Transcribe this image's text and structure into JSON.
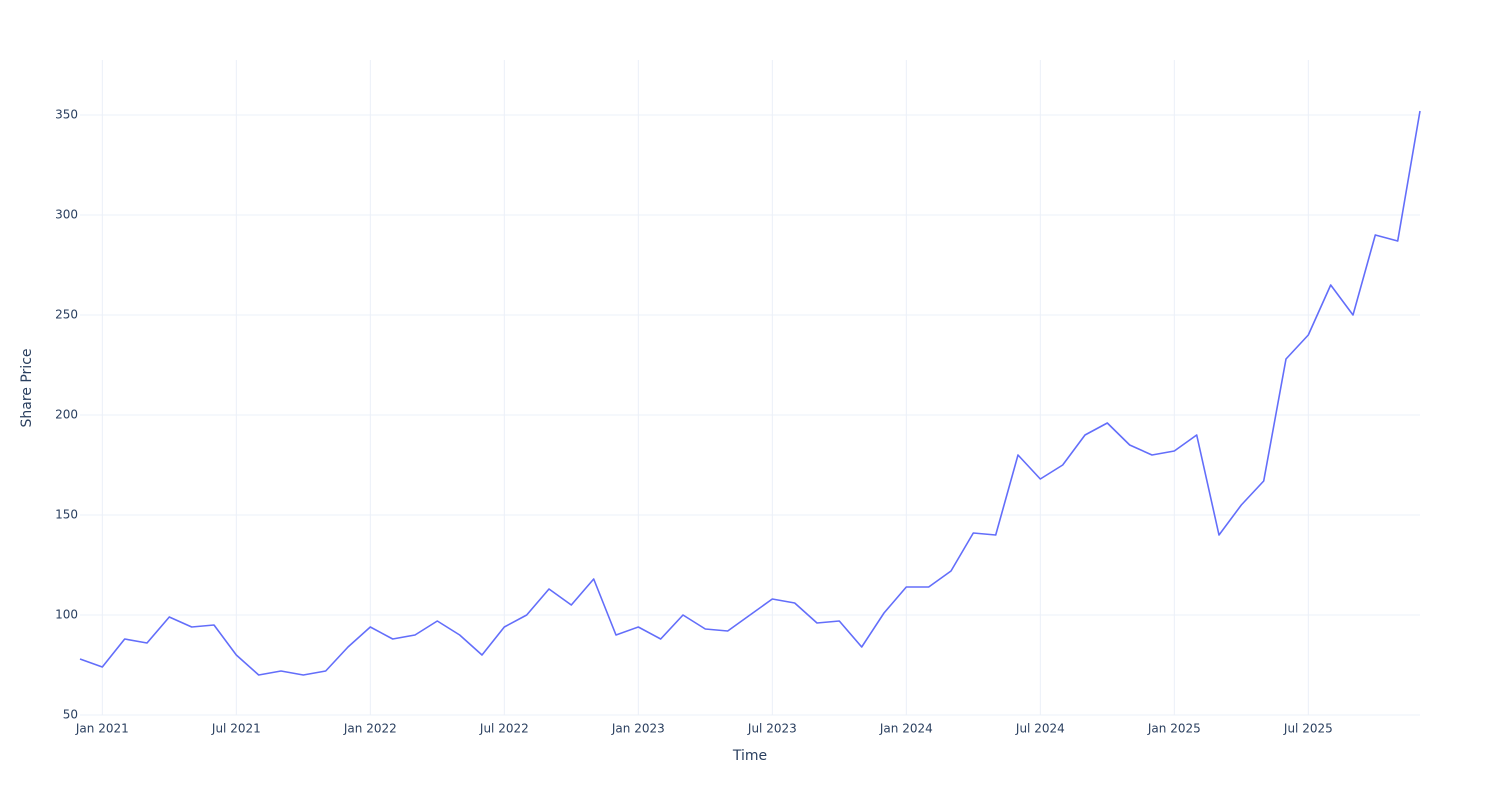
{
  "chart_data": {
    "type": "line",
    "x_label": "Time",
    "y_label": "Share Price",
    "x": [
      "2020-12",
      "2021-01",
      "2021-02",
      "2021-03",
      "2021-04",
      "2021-05",
      "2021-06",
      "2021-07",
      "2021-08",
      "2021-09",
      "2021-10",
      "2021-11",
      "2021-12",
      "2022-01",
      "2022-02",
      "2022-03",
      "2022-04",
      "2022-05",
      "2022-06",
      "2022-07",
      "2022-08",
      "2022-09",
      "2022-10",
      "2022-11",
      "2022-12",
      "2023-01",
      "2023-02",
      "2023-03",
      "2023-04",
      "2023-05",
      "2023-06",
      "2023-07",
      "2023-08",
      "2023-09",
      "2023-10",
      "2023-11",
      "2023-12",
      "2024-01",
      "2024-02",
      "2024-03",
      "2024-04",
      "2024-05",
      "2024-06",
      "2024-07",
      "2024-08",
      "2024-09",
      "2024-10",
      "2024-11",
      "2024-12",
      "2025-01",
      "2025-02",
      "2025-03",
      "2025-04",
      "2025-05",
      "2025-06",
      "2025-07",
      "2025-08",
      "2025-09",
      "2025-10",
      "2025-11",
      "2025-12"
    ],
    "series": [
      {
        "color": "#636efa",
        "values": [
          78,
          74,
          88,
          86,
          99,
          94,
          95,
          80,
          70,
          72,
          70,
          72,
          84,
          94,
          88,
          90,
          97,
          90,
          80,
          94,
          100,
          113,
          105,
          118,
          90,
          94,
          88,
          100,
          93,
          92,
          100,
          108,
          106,
          96,
          97,
          84,
          101,
          114,
          114,
          122,
          141,
          140,
          180,
          168,
          175,
          190,
          196,
          185,
          180,
          182,
          190,
          140,
          155,
          167,
          228,
          240,
          265,
          250,
          290,
          287,
          352
        ]
      }
    ],
    "xlim": [
      "2020-12",
      "2025-12"
    ],
    "xticks": [
      {
        "value": "2021-01",
        "label": "Jan 2021"
      },
      {
        "value": "2021-07",
        "label": "Jul 2021"
      },
      {
        "value": "2022-01",
        "label": "Jan 2022"
      },
      {
        "value": "2022-07",
        "label": "Jul 2022"
      },
      {
        "value": "2023-01",
        "label": "Jan 2023"
      },
      {
        "value": "2023-07",
        "label": "Jul 2023"
      },
      {
        "value": "2024-01",
        "label": "Jan 2024"
      },
      {
        "value": "2024-07",
        "label": "Jul 2024"
      },
      {
        "value": "2025-01",
        "label": "Jan 2025"
      },
      {
        "value": "2025-07",
        "label": "Jul 2025"
      }
    ],
    "ylim": [
      50,
      377.5
    ],
    "yticks": [
      50,
      100,
      150,
      200,
      250,
      300,
      350
    ],
    "grid": true
  }
}
